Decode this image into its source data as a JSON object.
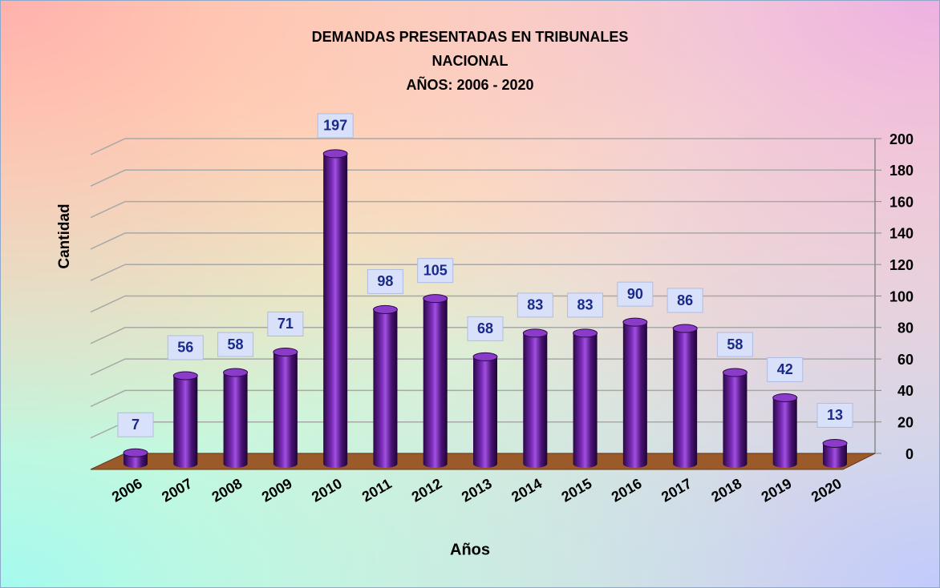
{
  "chart_data": {
    "type": "bar",
    "title": [
      "DEMANDAS PRESENTADAS EN TRIBUNALES",
      "NACIONAL",
      "AÑOS: 2006 - 2020"
    ],
    "x_label": "Años",
    "y_label": "Cantidad",
    "categories": [
      "2006",
      "2007",
      "2008",
      "2009",
      "2010",
      "2011",
      "2012",
      "2013",
      "2014",
      "2015",
      "2016",
      "2017",
      "2018",
      "2019",
      "2020"
    ],
    "values": [
      7,
      56,
      58,
      71,
      197,
      98,
      105,
      68,
      83,
      83,
      90,
      86,
      58,
      42,
      13
    ],
    "color": "#5a1a8c",
    "ylim": [
      0,
      200
    ],
    "yticks": [
      0,
      20,
      40,
      60,
      80,
      100,
      120,
      140,
      160,
      180,
      200
    ],
    "grid": true
  }
}
